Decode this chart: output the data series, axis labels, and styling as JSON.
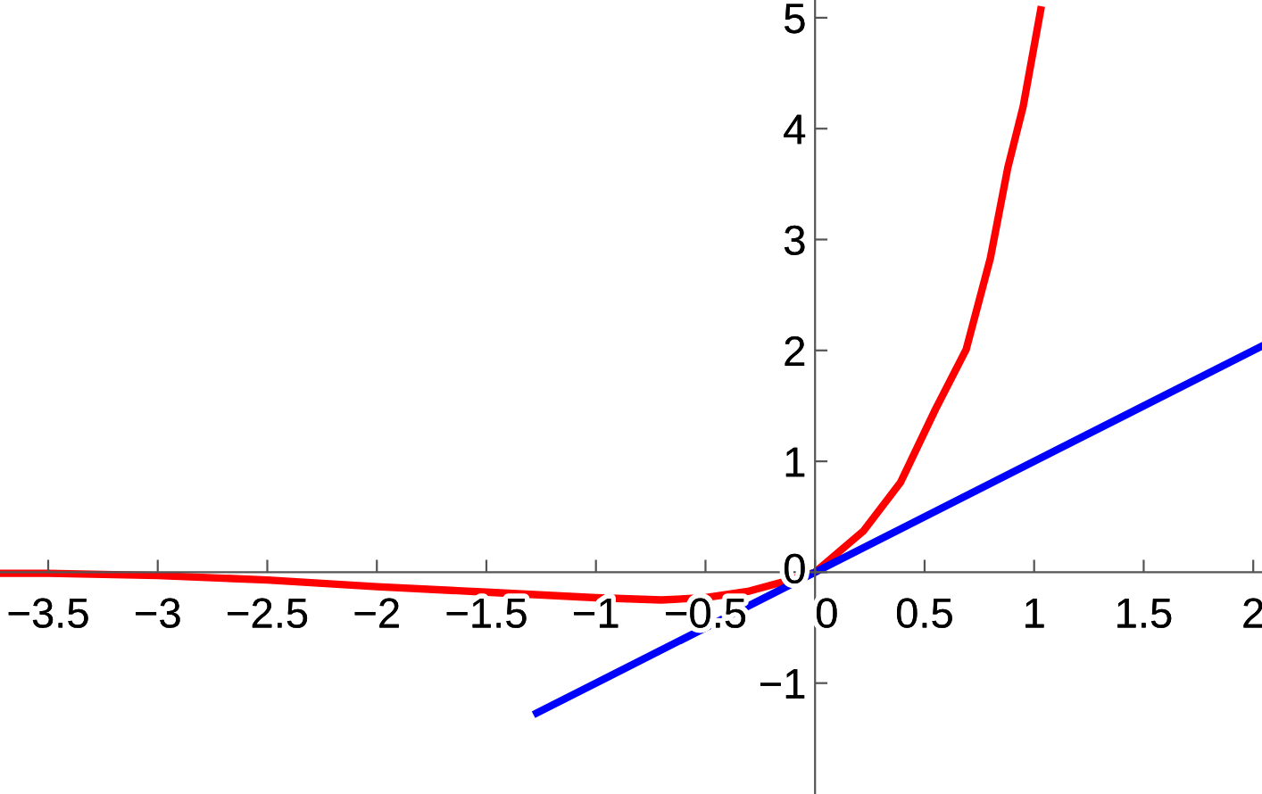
{
  "chart_data": {
    "type": "line",
    "xlim": [
      -3.72,
      2.04
    ],
    "ylim": [
      -2.0,
      5.16
    ],
    "xticks": [
      -3.5,
      -3,
      -2.5,
      -2,
      -1.5,
      -1,
      -0.5,
      0,
      0.5,
      1,
      1.5,
      2
    ],
    "yticks": [
      -1,
      0,
      1,
      2,
      3,
      4,
      5
    ],
    "grid": false,
    "marker": "none",
    "line_style": "solid",
    "series": [
      {
        "color": "#ff0000",
        "x": [
          -3.72,
          -3.5,
          -3,
          -2.5,
          -2,
          -1.5,
          -1,
          -0.7,
          -0.5,
          -0.3,
          -0.15,
          0,
          0.22,
          0.39,
          0.55,
          0.69,
          0.8,
          0.88,
          0.95,
          1.03
        ],
        "values": [
          -0.01,
          -0.01,
          -0.03,
          -0.07,
          -0.13,
          -0.18,
          -0.23,
          -0.25,
          -0.23,
          -0.17,
          -0.09,
          0,
          0.37,
          0.81,
          1.47,
          2.01,
          2.83,
          3.65,
          4.2,
          5.07
        ]
      },
      {
        "color": "#0000ff",
        "x": [
          -1.27,
          2.04
        ],
        "values": [
          -1.27,
          2.04
        ]
      }
    ]
  }
}
